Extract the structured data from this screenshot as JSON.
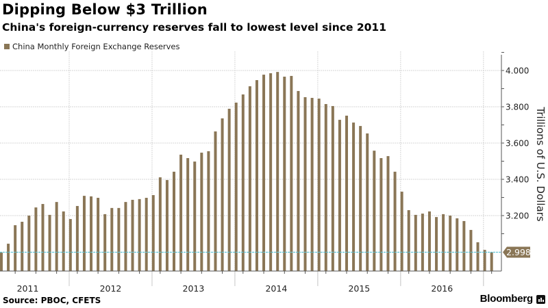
{
  "header": {
    "title": "Dipping Below $3 Trillion",
    "subtitle": "China's foreign-currency reserves fall to lowest level since 2011"
  },
  "footer": {
    "source": "Source: PBOC, CFETS",
    "brand": "Bloomberg"
  },
  "colors": {
    "bar": "#8a7656",
    "reference_line": "#5fc4d6",
    "gridline": "#d6d6d6",
    "axis": "#555555"
  },
  "chart_data": {
    "type": "bar",
    "title": "Dipping Below $3 Trillion",
    "subtitle": "China's foreign-currency reserves fall to lowest level since 2011",
    "xlabel": "",
    "ylabel": "Trillions of U.S. Dollars",
    "y_axis_side": "right",
    "ylim": [
      2.89,
      4.08
    ],
    "yticks": [
      3.2,
      3.4,
      3.6,
      3.8,
      4.0
    ],
    "ytick_labels": [
      "3.200",
      "3.400",
      "3.600",
      "3.800",
      "4.000"
    ],
    "grid": true,
    "legend": {
      "entries": [
        "China Monthly Foreign Exchange Reserves"
      ],
      "placement": "top-left"
    },
    "x_year_labels": [
      "2011",
      "2012",
      "2013",
      "2014",
      "2015",
      "2016"
    ],
    "first_period": "2011-02",
    "last_period": "2017-01",
    "series": [
      {
        "name": "China Monthly Foreign Exchange Reserves",
        "values": [
          2.996,
          3.045,
          3.147,
          3.166,
          3.2,
          3.245,
          3.264,
          3.204,
          3.275,
          3.223,
          3.181,
          3.253,
          3.309,
          3.306,
          3.298,
          3.208,
          3.242,
          3.242,
          3.275,
          3.287,
          3.291,
          3.298,
          3.313,
          3.411,
          3.396,
          3.442,
          3.536,
          3.517,
          3.498,
          3.547,
          3.555,
          3.664,
          3.736,
          3.789,
          3.823,
          3.868,
          3.913,
          3.947,
          3.977,
          3.985,
          3.992,
          3.966,
          3.97,
          3.887,
          3.853,
          3.849,
          3.845,
          3.815,
          3.804,
          3.728,
          3.751,
          3.713,
          3.694,
          3.653,
          3.558,
          3.517,
          3.528,
          3.442,
          3.332,
          3.23,
          3.204,
          3.211,
          3.223,
          3.192,
          3.208,
          3.2,
          3.185,
          3.17,
          3.121,
          3.053,
          3.011,
          2.998
        ]
      }
    ],
    "annotations": [
      {
        "type": "reference_line",
        "value": 2.998,
        "label": "2.998"
      }
    ]
  }
}
